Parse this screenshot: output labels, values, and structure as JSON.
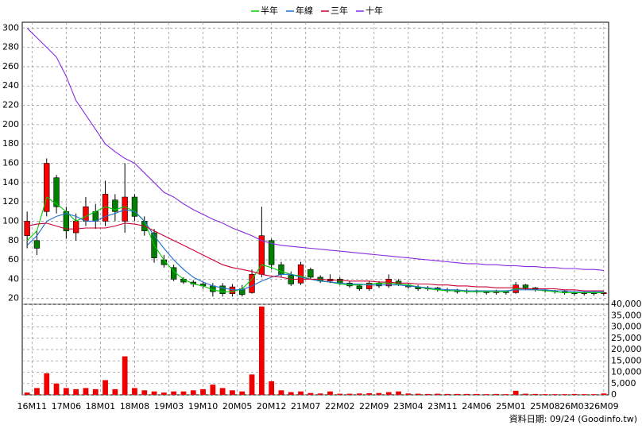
{
  "chart_data": {
    "type": "candlestick",
    "xlim": [
      -0.5,
      59.5
    ],
    "xticks": [
      {
        "value": 0.5,
        "label": "16M11"
      },
      {
        "value": 4,
        "label": "17M06"
      },
      {
        "value": 7.5,
        "label": "18M01"
      },
      {
        "value": 11,
        "label": "18M08"
      },
      {
        "value": 14.5,
        "label": "19M03"
      },
      {
        "value": 18,
        "label": "19M10"
      },
      {
        "value": 21.5,
        "label": "20M05"
      },
      {
        "value": 25,
        "label": "20M12"
      },
      {
        "value": 28.5,
        "label": "21M07"
      },
      {
        "value": 32,
        "label": "22M02"
      },
      {
        "value": 35.5,
        "label": "22M09"
      },
      {
        "value": 39,
        "label": "23M04"
      },
      {
        "value": 42.5,
        "label": "23M11"
      },
      {
        "value": 46,
        "label": "24M06"
      },
      {
        "value": 49.5,
        "label": "25M01"
      },
      {
        "value": 53,
        "label": "25M08"
      },
      {
        "value": 56,
        "label": "26M03"
      },
      {
        "value": 59,
        "label": "26M09"
      }
    ],
    "ylim": [
      14,
      306
    ],
    "yticks": [
      20,
      40,
      60,
      80,
      100,
      120,
      140,
      160,
      180,
      200,
      220,
      240,
      260,
      280,
      300
    ],
    "y2lim": [
      0,
      40000
    ],
    "y2ticks": [
      0,
      {
        "value": 5000,
        "label": "5,000"
      },
      {
        "value": 10000,
        "label": "10,000"
      },
      {
        "value": 15000,
        "label": "15,000"
      },
      {
        "value": 20000,
        "label": "20,000"
      },
      {
        "value": 25000,
        "label": "25,000"
      },
      {
        "value": 30000,
        "label": "30,000"
      },
      {
        "value": 35000,
        "label": "35,000"
      },
      {
        "value": 40000,
        "label": "40,000"
      }
    ],
    "grid": true,
    "up_color": "#ff0000",
    "down_color": "#008000",
    "open": [
      85,
      80,
      110,
      145,
      110,
      88,
      100,
      110,
      100,
      122,
      100,
      125,
      100,
      88,
      60,
      52,
      40,
      37,
      35,
      33,
      33,
      25,
      30,
      26,
      45,
      80,
      55,
      44,
      36,
      50,
      42,
      38,
      40,
      36,
      33,
      30,
      36,
      33,
      38,
      34,
      32,
      30,
      31,
      29,
      28,
      27,
      28,
      27,
      26,
      27,
      26,
      34,
      31,
      29,
      28,
      27,
      26,
      25,
      26,
      25
    ],
    "high": [
      110,
      90,
      165,
      148,
      115,
      108,
      125,
      118,
      142,
      128,
      160,
      128,
      105,
      92,
      65,
      55,
      42,
      39,
      37,
      36,
      36,
      35,
      34,
      50,
      115,
      82,
      58,
      48,
      58,
      52,
      44,
      45,
      42,
      38,
      35,
      38,
      38,
      45,
      40,
      36,
      34,
      33,
      32,
      31,
      30,
      30,
      29,
      28,
      29,
      28,
      37,
      35,
      32,
      30,
      29,
      28,
      27,
      27,
      27,
      27
    ],
    "low": [
      72,
      65,
      105,
      108,
      82,
      80,
      95,
      92,
      95,
      100,
      88,
      100,
      85,
      57,
      52,
      38,
      35,
      32,
      30,
      22,
      22,
      22,
      22,
      25,
      42,
      50,
      42,
      33,
      34,
      40,
      36,
      36,
      34,
      31,
      28,
      28,
      31,
      31,
      33,
      30,
      28,
      28,
      27,
      26,
      25,
      25,
      25,
      24,
      24,
      24,
      25,
      29,
      27,
      26,
      25,
      24,
      23,
      23,
      23,
      23
    ],
    "close": [
      100,
      72,
      160,
      115,
      90,
      100,
      115,
      100,
      128,
      110,
      125,
      105,
      90,
      62,
      55,
      40,
      37,
      35,
      33,
      27,
      25,
      32,
      24,
      45,
      85,
      55,
      45,
      35,
      55,
      42,
      38,
      40,
      36,
      33,
      30,
      36,
      33,
      40,
      35,
      32,
      30,
      31,
      29,
      28,
      27,
      28,
      27,
      26,
      27,
      26,
      34,
      31,
      29,
      28,
      27,
      26,
      25,
      26,
      25,
      26
    ],
    "volume": {
      "color": "#ee0000",
      "axis": "y2",
      "values": [
        1000,
        3000,
        9500,
        5000,
        3000,
        2500,
        3000,
        2500,
        6500,
        2500,
        17000,
        3000,
        2000,
        1500,
        1000,
        1500,
        1500,
        2000,
        2500,
        4500,
        3000,
        2000,
        1500,
        9000,
        39000,
        6000,
        2000,
        1200,
        1500,
        800,
        600,
        1500,
        500,
        500,
        600,
        700,
        800,
        1200,
        1500,
        600,
        500,
        400,
        500,
        400,
        400,
        400,
        400,
        300,
        400,
        300,
        1800,
        500,
        400,
        300,
        300,
        300,
        400,
        300,
        300,
        600
      ]
    },
    "series": [
      {
        "name": "半年",
        "color": "#00cc00",
        "values": [
          80,
          90,
          125,
          118,
          110,
          100,
          105,
          110,
          115,
          112,
          115,
          110,
          100,
          75,
          60,
          48,
          40,
          35,
          33,
          29,
          27,
          27,
          30,
          40,
          55,
          52,
          48,
          45,
          43,
          40,
          38,
          37,
          35,
          34,
          34,
          35,
          36,
          36,
          35,
          34,
          32,
          30,
          29,
          28,
          28,
          27,
          27,
          27,
          27,
          27,
          30,
          30,
          29,
          28,
          27,
          26,
          26,
          26,
          26,
          26
        ]
      },
      {
        "name": "年線",
        "color": "#1e6fd0",
        "values": [
          75,
          85,
          100,
          105,
          108,
          105,
          100,
          100,
          105,
          108,
          112,
          110,
          100,
          85,
          72,
          60,
          50,
          42,
          37,
          33,
          31,
          29,
          29,
          33,
          38,
          42,
          45,
          45,
          42,
          40,
          38,
          37,
          36,
          35,
          35,
          34,
          34,
          34,
          34,
          33,
          32,
          31,
          30,
          29,
          29,
          28,
          28,
          28,
          28,
          28,
          29,
          29,
          29,
          29,
          28,
          28,
          27,
          27,
          27,
          27
        ]
      },
      {
        "name": "三年",
        "color": "#cc0033",
        "values": [
          95,
          97,
          98,
          95,
          92,
          92,
          93,
          93,
          93,
          95,
          98,
          97,
          95,
          90,
          85,
          80,
          75,
          70,
          65,
          60,
          55,
          52,
          50,
          48,
          45,
          43,
          42,
          40,
          40,
          40,
          40,
          39,
          39,
          38,
          38,
          38,
          37,
          37,
          36,
          36,
          35,
          35,
          34,
          34,
          33,
          33,
          32,
          32,
          31,
          31,
          31,
          30,
          30,
          30,
          30,
          29,
          29,
          28,
          28,
          28
        ]
      },
      {
        "name": "十年",
        "color": "#8a2be2",
        "values": [
          300,
          290,
          280,
          270,
          250,
          225,
          210,
          195,
          180,
          172,
          165,
          160,
          150,
          140,
          130,
          125,
          118,
          112,
          107,
          102,
          98,
          93,
          89,
          85,
          80,
          77,
          75,
          74,
          73,
          72,
          71,
          70,
          69,
          68,
          67,
          66,
          65,
          64,
          63,
          62,
          61,
          60,
          59,
          58,
          57,
          56,
          56,
          55,
          55,
          54,
          54,
          53,
          53,
          52,
          52,
          51,
          51,
          50,
          50,
          49
        ]
      }
    ],
    "source": "資料日期: 09/24 (Goodinfo.tw)"
  }
}
